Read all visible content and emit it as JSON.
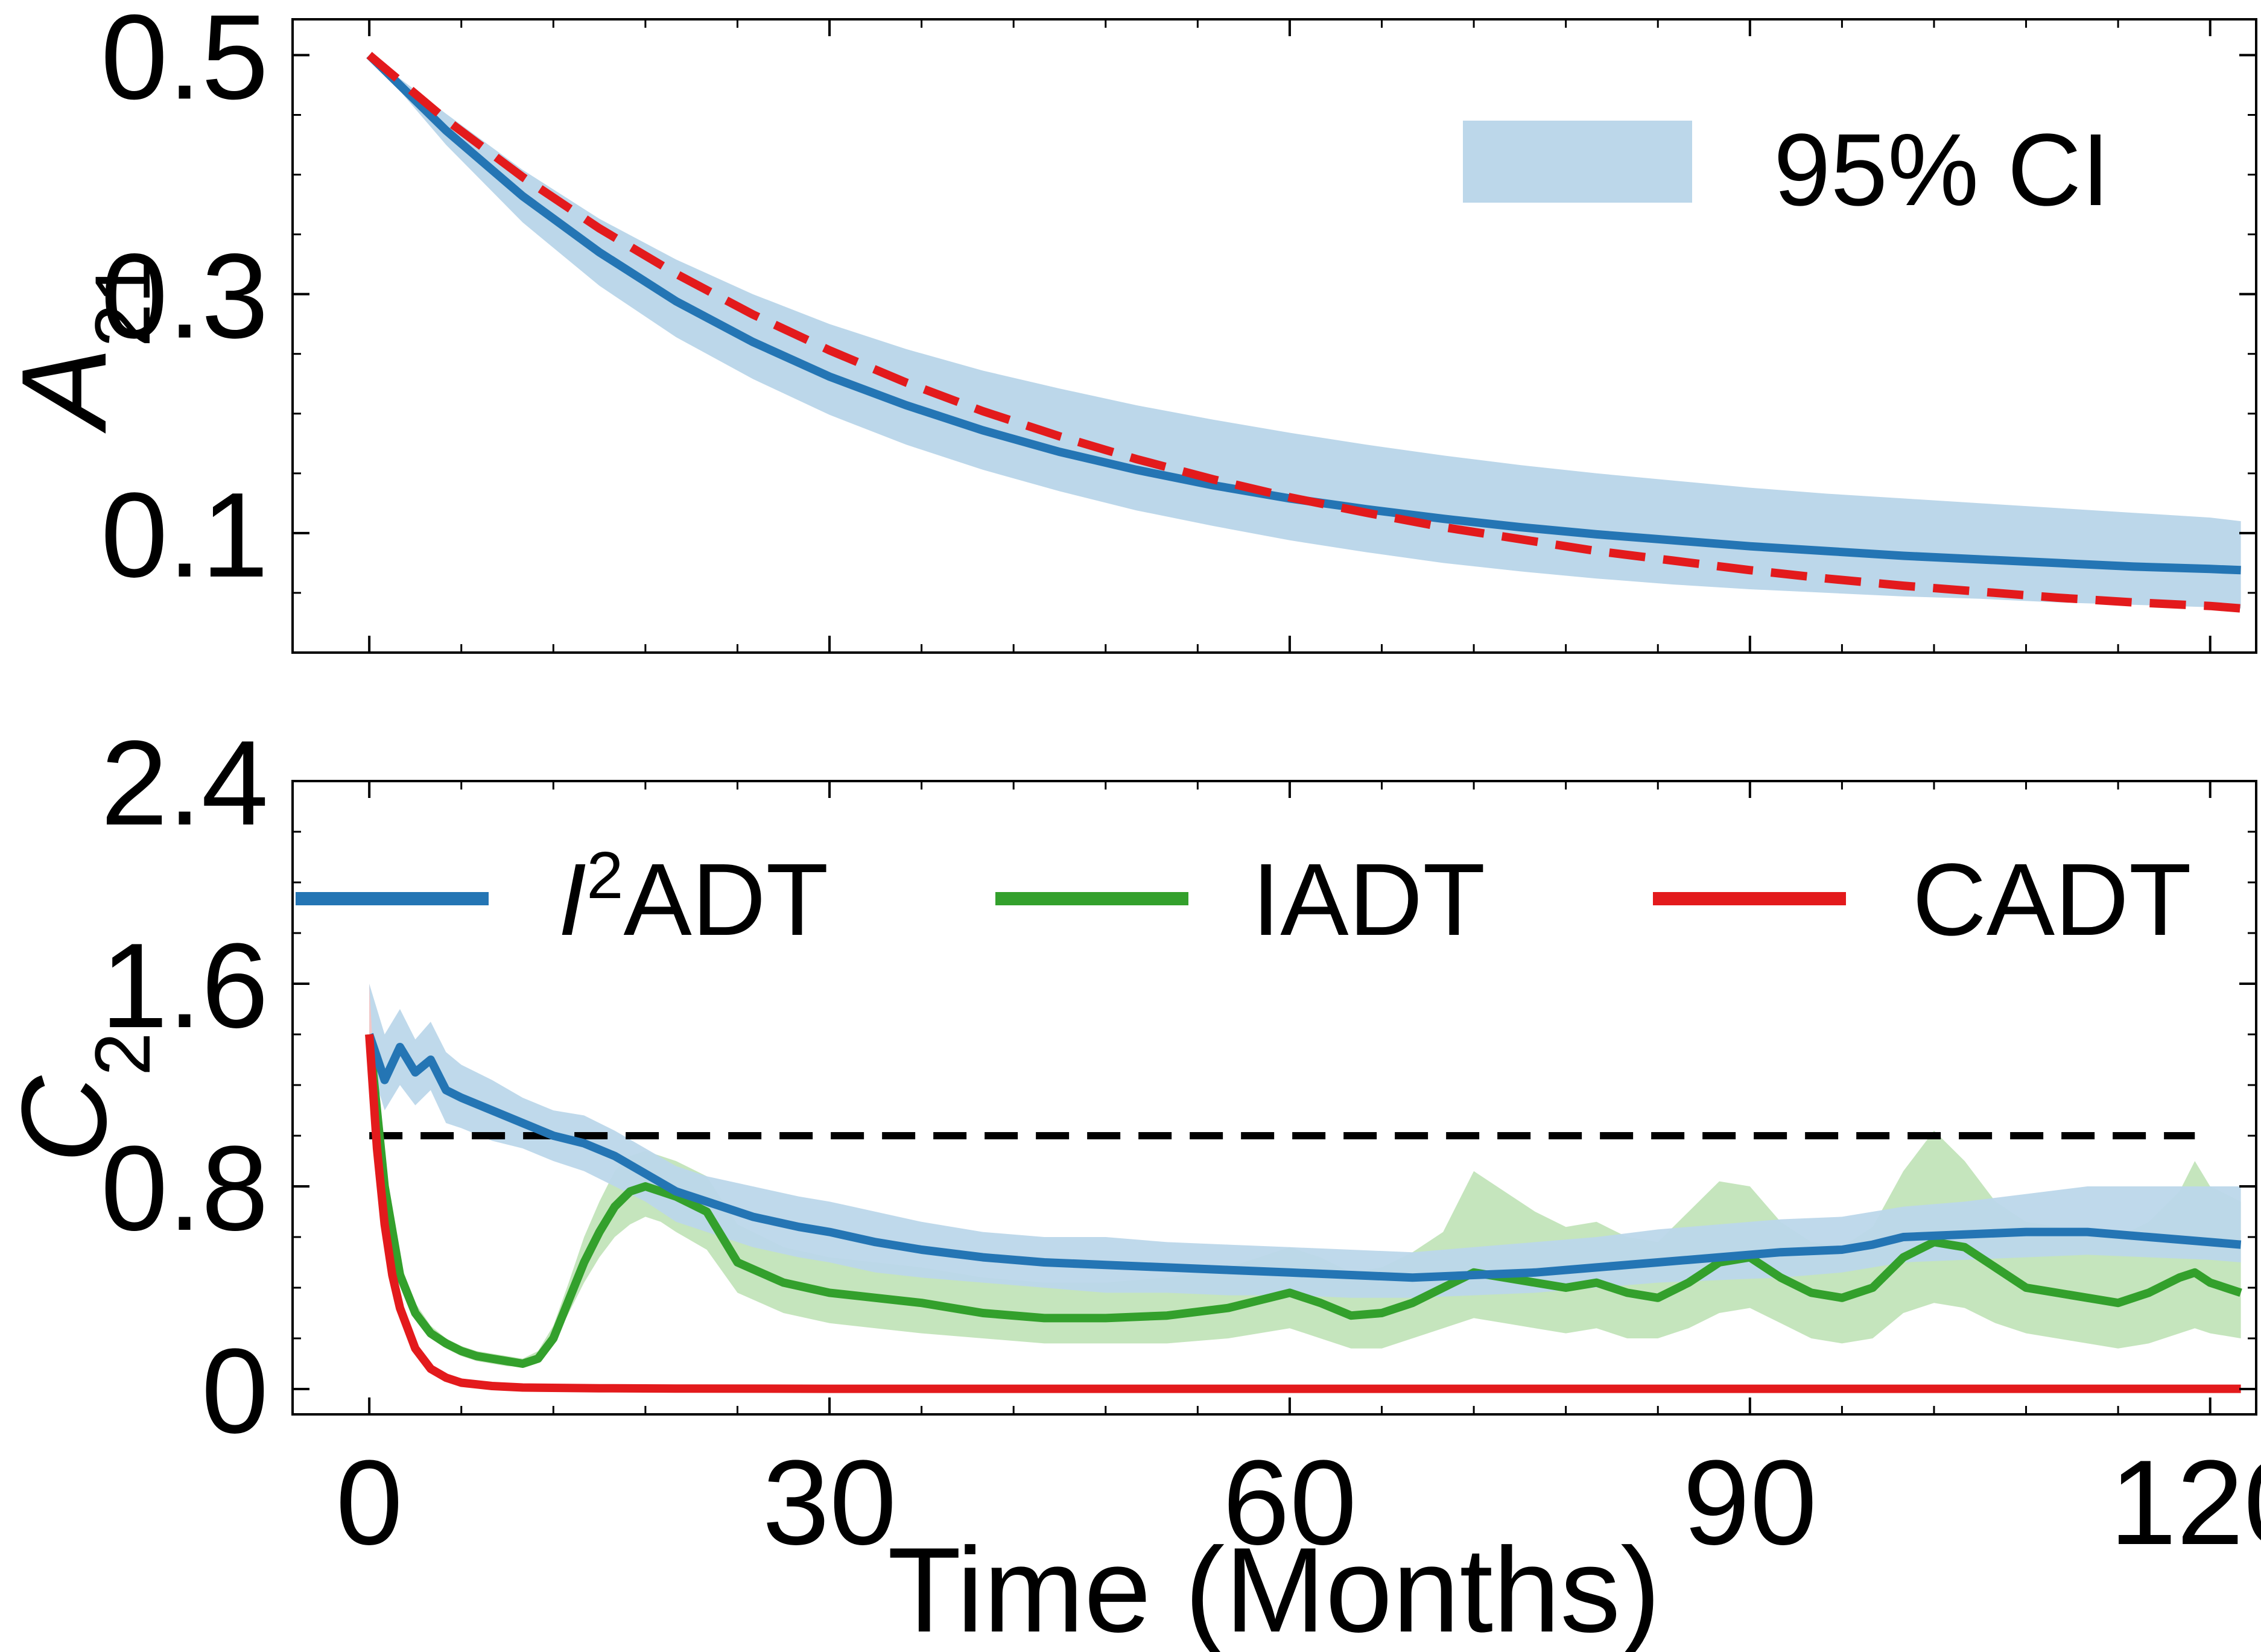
{
  "chart_data": [
    {
      "type": "line",
      "panel": "top",
      "xlabel": "",
      "ylabel_base": "A",
      "ylabel_sub": "21",
      "xlim": [
        -5,
        123
      ],
      "ylim": [
        0,
        0.53
      ],
      "yticks": [
        0.1,
        0.3,
        0.5
      ],
      "ytick_labels": [
        "0.1",
        "0.3",
        "0.5"
      ],
      "grid": false,
      "legend_position": "top-right",
      "legend": [
        {
          "label": "95% CI",
          "kind": "band",
          "color": "#bcd7ea"
        }
      ],
      "x": [
        0,
        5,
        10,
        15,
        20,
        25,
        30,
        35,
        40,
        45,
        50,
        55,
        60,
        65,
        70,
        75,
        80,
        85,
        90,
        95,
        100,
        105,
        110,
        115,
        120,
        122
      ],
      "series": [
        {
          "role": "ci_band",
          "color": "#bcd7ea",
          "lower": [
            0.5,
            0.425,
            0.36,
            0.307,
            0.264,
            0.229,
            0.199,
            0.174,
            0.153,
            0.135,
            0.119,
            0.106,
            0.094,
            0.084,
            0.075,
            0.068,
            0.062,
            0.057,
            0.053,
            0.05,
            0.047,
            0.045,
            0.042,
            0.04,
            0.038,
            0.037
          ],
          "upper": [
            0.5,
            0.451,
            0.404,
            0.363,
            0.329,
            0.3,
            0.275,
            0.254,
            0.236,
            0.221,
            0.207,
            0.195,
            0.184,
            0.174,
            0.165,
            0.157,
            0.15,
            0.144,
            0.138,
            0.133,
            0.129,
            0.125,
            0.121,
            0.117,
            0.113,
            0.11
          ]
        },
        {
          "role": "mean",
          "color": "#2475b4",
          "style": "solid",
          "values": [
            0.5,
            0.437,
            0.382,
            0.335,
            0.294,
            0.26,
            0.231,
            0.207,
            0.186,
            0.168,
            0.153,
            0.14,
            0.129,
            0.12,
            0.112,
            0.105,
            0.099,
            0.094,
            0.089,
            0.085,
            0.081,
            0.078,
            0.075,
            0.072,
            0.07,
            0.069
          ]
        },
        {
          "role": "reference",
          "color": "#e31a1c",
          "style": "dashed",
          "values": [
            0.5,
            0.446,
            0.398,
            0.355,
            0.317,
            0.283,
            0.253,
            0.226,
            0.202,
            0.181,
            0.162,
            0.145,
            0.13,
            0.117,
            0.105,
            0.095,
            0.085,
            0.077,
            0.069,
            0.062,
            0.056,
            0.051,
            0.046,
            0.042,
            0.039,
            0.037
          ]
        }
      ]
    },
    {
      "type": "line",
      "panel": "bottom",
      "xlabel": "Time (Months)",
      "ylabel_base": "C",
      "ylabel_sub": "2",
      "xlim": [
        -5,
        123
      ],
      "ylim": [
        -0.1,
        2.4
      ],
      "xticks": [
        0,
        30,
        60,
        90,
        120
      ],
      "xtick_labels": [
        "0",
        "30",
        "60",
        "90",
        "120"
      ],
      "yticks": [
        0,
        0.8,
        1.6,
        2.4
      ],
      "ytick_labels": [
        "0",
        "0.8",
        "1.6",
        "2.4"
      ],
      "grid": false,
      "legend_position": "top, single row",
      "threshold": {
        "value": 1.0,
        "x_range": [
          0,
          119
        ],
        "color": "#000000",
        "style": "dashed"
      },
      "series": [
        {
          "name_prefix": "I",
          "name_sup": "2",
          "name_rest": "ADT",
          "color": "#2475b4",
          "x": [
            0,
            1,
            2,
            3,
            4,
            5,
            6,
            8,
            10,
            12,
            14,
            16,
            18,
            20,
            22,
            25,
            28,
            30,
            33,
            36,
            40,
            44,
            48,
            52,
            56,
            60,
            64,
            68,
            72,
            76,
            80,
            84,
            88,
            92,
            96,
            98,
            100,
            104,
            108,
            112,
            116,
            120,
            122
          ],
          "values": [
            1.4,
            1.22,
            1.35,
            1.25,
            1.3,
            1.18,
            1.15,
            1.1,
            1.05,
            1.0,
            0.97,
            0.92,
            0.85,
            0.78,
            0.74,
            0.68,
            0.64,
            0.62,
            0.58,
            0.55,
            0.52,
            0.5,
            0.49,
            0.48,
            0.47,
            0.46,
            0.45,
            0.44,
            0.45,
            0.46,
            0.48,
            0.5,
            0.52,
            0.54,
            0.55,
            0.57,
            0.6,
            0.61,
            0.62,
            0.62,
            0.6,
            0.58,
            0.57
          ],
          "ci_lower": [
            1.3,
            1.1,
            1.2,
            1.12,
            1.18,
            1.05,
            1.03,
            0.98,
            0.95,
            0.9,
            0.86,
            0.8,
            0.74,
            0.66,
            0.62,
            0.56,
            0.52,
            0.5,
            0.46,
            0.44,
            0.42,
            0.4,
            0.38,
            0.38,
            0.37,
            0.37,
            0.36,
            0.36,
            0.37,
            0.38,
            0.4,
            0.42,
            0.43,
            0.44,
            0.46,
            0.48,
            0.5,
            0.51,
            0.52,
            0.53,
            0.52,
            0.51,
            0.5
          ],
          "ci_upper": [
            1.6,
            1.4,
            1.5,
            1.38,
            1.45,
            1.33,
            1.28,
            1.22,
            1.15,
            1.1,
            1.08,
            1.02,
            0.95,
            0.88,
            0.84,
            0.8,
            0.76,
            0.74,
            0.7,
            0.66,
            0.62,
            0.6,
            0.6,
            0.58,
            0.57,
            0.56,
            0.55,
            0.54,
            0.56,
            0.58,
            0.6,
            0.63,
            0.65,
            0.67,
            0.68,
            0.7,
            0.72,
            0.74,
            0.77,
            0.8,
            0.8,
            0.8,
            0.8
          ]
        },
        {
          "name_prefix": "",
          "name_sup": "",
          "name_rest": "IADT",
          "color": "#33a02c",
          "x": [
            0,
            1,
            2,
            3,
            4,
            5,
            6,
            7,
            8,
            9,
            10,
            11,
            12,
            13,
            14,
            15,
            16,
            17,
            18,
            19,
            20,
            22,
            24,
            27,
            30,
            33,
            36,
            40,
            44,
            48,
            52,
            56,
            58,
            60,
            62,
            64,
            66,
            68,
            70,
            72,
            74,
            76,
            78,
            80,
            82,
            84,
            86,
            88,
            90,
            92,
            94,
            96,
            98,
            100,
            102,
            104,
            106,
            108,
            110,
            112,
            114,
            116,
            118,
            119,
            120,
            122
          ],
          "values": [
            1.4,
            0.8,
            0.45,
            0.3,
            0.22,
            0.18,
            0.15,
            0.13,
            0.12,
            0.11,
            0.1,
            0.12,
            0.2,
            0.35,
            0.5,
            0.62,
            0.72,
            0.78,
            0.8,
            0.78,
            0.76,
            0.7,
            0.5,
            0.42,
            0.38,
            0.36,
            0.34,
            0.3,
            0.28,
            0.28,
            0.29,
            0.32,
            0.35,
            0.38,
            0.34,
            0.29,
            0.3,
            0.34,
            0.4,
            0.46,
            0.44,
            0.42,
            0.4,
            0.42,
            0.38,
            0.36,
            0.42,
            0.5,
            0.52,
            0.44,
            0.38,
            0.36,
            0.4,
            0.52,
            0.58,
            0.56,
            0.48,
            0.4,
            0.38,
            0.36,
            0.34,
            0.38,
            0.44,
            0.46,
            0.42,
            0.38
          ],
          "ci_lower": [
            1.3,
            0.75,
            0.42,
            0.28,
            0.2,
            0.16,
            0.13,
            0.11,
            0.1,
            0.09,
            0.09,
            0.11,
            0.18,
            0.3,
            0.42,
            0.52,
            0.6,
            0.65,
            0.68,
            0.66,
            0.62,
            0.55,
            0.38,
            0.3,
            0.26,
            0.24,
            0.22,
            0.2,
            0.18,
            0.18,
            0.18,
            0.2,
            0.22,
            0.24,
            0.2,
            0.16,
            0.16,
            0.2,
            0.24,
            0.28,
            0.26,
            0.24,
            0.22,
            0.24,
            0.2,
            0.2,
            0.24,
            0.3,
            0.32,
            0.26,
            0.2,
            0.18,
            0.2,
            0.3,
            0.34,
            0.32,
            0.26,
            0.22,
            0.2,
            0.18,
            0.16,
            0.18,
            0.22,
            0.24,
            0.22,
            0.2
          ],
          "ci_upper": [
            1.5,
            0.9,
            0.5,
            0.34,
            0.25,
            0.2,
            0.17,
            0.15,
            0.14,
            0.13,
            0.12,
            0.15,
            0.25,
            0.42,
            0.6,
            0.74,
            0.86,
            0.92,
            0.94,
            0.92,
            0.9,
            0.84,
            0.65,
            0.56,
            0.52,
            0.5,
            0.48,
            0.44,
            0.42,
            0.42,
            0.44,
            0.48,
            0.52,
            0.56,
            0.52,
            0.46,
            0.48,
            0.54,
            0.62,
            0.86,
            0.78,
            0.7,
            0.64,
            0.66,
            0.6,
            0.58,
            0.7,
            0.82,
            0.8,
            0.66,
            0.58,
            0.56,
            0.64,
            0.86,
            1.02,
            0.9,
            0.74,
            0.66,
            0.64,
            0.62,
            0.6,
            0.66,
            0.78,
            0.9,
            0.8,
            0.74
          ]
        },
        {
          "name_prefix": "",
          "name_sup": "",
          "name_rest": "CADT",
          "color": "#e31a1c",
          "x": [
            0,
            0.5,
            1,
            1.5,
            2,
            3,
            4,
            5,
            6,
            8,
            10,
            15,
            20,
            30,
            60,
            90,
            120,
            122
          ],
          "values": [
            1.4,
            0.95,
            0.65,
            0.45,
            0.32,
            0.16,
            0.08,
            0.045,
            0.025,
            0.012,
            0.006,
            0.003,
            0.002,
            0.001,
            0.001,
            0.001,
            0.001,
            0.001
          ],
          "ci_lower": [
            1.3,
            0.9,
            0.6,
            0.4,
            0.28,
            0.14,
            0.07,
            0.04,
            0.02,
            0.01,
            0.005,
            0.002,
            0.001,
            0.0,
            0.0,
            0.0,
            0.0,
            0.0
          ],
          "ci_upper": [
            1.6,
            1.05,
            0.72,
            0.5,
            0.36,
            0.19,
            0.1,
            0.055,
            0.03,
            0.015,
            0.008,
            0.004,
            0.003,
            0.002,
            0.002,
            0.002,
            0.002,
            0.002
          ]
        }
      ]
    }
  ]
}
